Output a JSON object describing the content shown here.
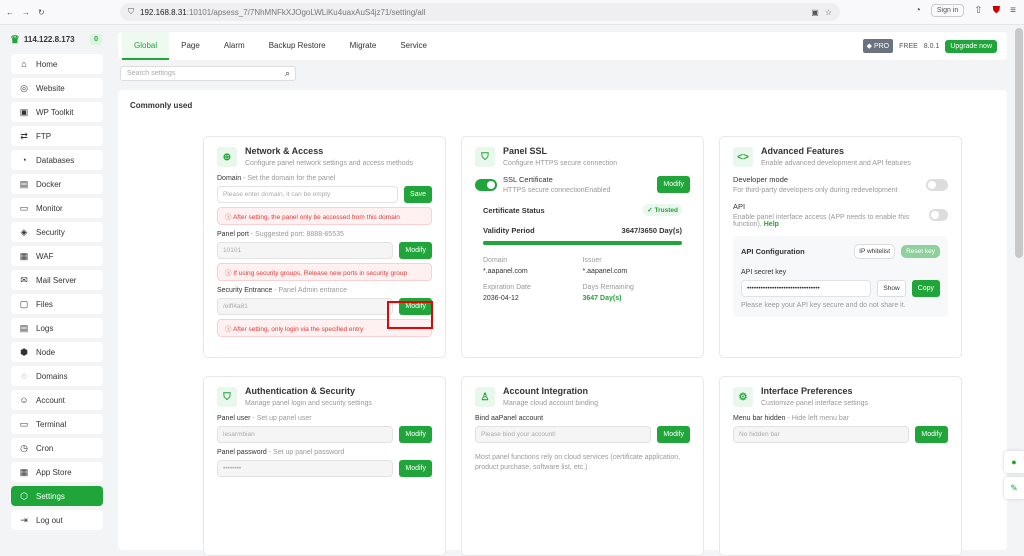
{
  "browser": {
    "url_host": "192.168.8.31",
    "url_path": ":10101/apsess_7/7NhMNFkXJOgoLWLiKu4uaxAuS4jz71/setting/all",
    "sign_in": "Sign in"
  },
  "sidebar": {
    "server": "114.122.8.173",
    "badge": "0",
    "items": [
      {
        "label": "Home",
        "icon": "⌂"
      },
      {
        "label": "Website",
        "icon": "◎"
      },
      {
        "label": "WP Toolkit",
        "icon": "▣"
      },
      {
        "label": "FTP",
        "icon": "⇄"
      },
      {
        "label": "Databases",
        "icon": "◔"
      },
      {
        "label": "Docker",
        "icon": "▤"
      },
      {
        "label": "Monitor",
        "icon": "▭"
      },
      {
        "label": "Security",
        "icon": "◈"
      },
      {
        "label": "WAF",
        "icon": "▦"
      },
      {
        "label": "Mail Server",
        "icon": "✉"
      },
      {
        "label": "Files",
        "icon": "▢"
      },
      {
        "label": "Logs",
        "icon": "▤"
      },
      {
        "label": "Node",
        "icon": "⬢"
      },
      {
        "label": "Domains",
        "icon": "◌"
      },
      {
        "label": "Account",
        "icon": "☺"
      },
      {
        "label": "Terminal",
        "icon": "▭"
      },
      {
        "label": "Cron",
        "icon": "◷"
      },
      {
        "label": "App Store",
        "icon": "▦"
      },
      {
        "label": "Settings",
        "icon": "⬡"
      },
      {
        "label": "Log out",
        "icon": "⇥"
      }
    ],
    "active": "Settings"
  },
  "tabs": [
    "Global",
    "Page",
    "Alarm",
    "Backup Restore",
    "Migrate",
    "Service"
  ],
  "header": {
    "pro": "PRO",
    "free": "FREE",
    "version": "8.0.1",
    "upgrade": "Upgrade now"
  },
  "search": {
    "placeholder": "Search settings"
  },
  "main": {
    "heading": "Commonly used"
  },
  "network": {
    "title": "Network & Access",
    "subtitle": "Configure panel network settings and access methods",
    "domain_label": "Domain",
    "domain_hint": " - Set the domain for the panel",
    "domain_placeholder": "Please enter domain, it can be empty",
    "save": "Save",
    "domain_warn": "After setting, the panel only be accessed from this domain",
    "port_label": "Panel port",
    "port_hint": " - Suggested port: 8888-65535",
    "port_value": "10101",
    "modify": "Modify",
    "port_warn": "If using security groups, Release new ports in security group",
    "entrance_label": "Security Entrance",
    "entrance_hint": " - Panel Admin entrance",
    "entrance_value": "/elff4a81",
    "entrance_warn": "After setting, only login via the specified entry"
  },
  "ssl": {
    "title": "Panel SSL",
    "subtitle": "Configure HTTPS secure connection",
    "cert_label": "SSL Certificate",
    "cert_status_text": "HTTPS secure connectionEnabled",
    "enabled": true,
    "modify": "Modify",
    "status_label": "Certificate Status",
    "trusted": "Trusted",
    "validity_label": "Validity Period",
    "validity_value": "3647/3650 Day(s)",
    "validity_progress": 0.9992,
    "domain_label": "Domain",
    "domain": "*.aapanel.com",
    "issuer_label": "Issuer",
    "issuer": "*.aapanel.com",
    "exp_label": "Expiration Date",
    "exp": "2036-04-12",
    "remain_label": "Days Remaining",
    "remain": "3647 Day(s)"
  },
  "advanced": {
    "title": "Advanced Features",
    "subtitle": "Enable advanced development and API features",
    "dev_label": "Developer mode",
    "dev_desc": "For third-party developers only during redevelopment",
    "dev_on": false,
    "api_label": "API",
    "api_desc": "Enable panel interface access (APP needs to enable this function), ",
    "help": "Help",
    "api_on": false,
    "config_title": "API Configuration",
    "ip_whitelist": "IP whitelist",
    "reset_key": "Reset key",
    "key_label": "API secret key",
    "key_value": "••••••••••••••••••••••••••••••••",
    "show": "Show",
    "copy": "Copy",
    "key_note": "Please keep your API key secure and do not share it."
  },
  "auth": {
    "title": "Authentication & Security",
    "subtitle": "Manage panel login and security settings",
    "user_label": "Panel user",
    "user_hint": " - Set up panel user",
    "user_value": "lesarmbian",
    "pw_label": "Panel password",
    "pw_hint": " - Set up panel password",
    "pw_value": "••••••••",
    "modify": "Modify"
  },
  "account": {
    "title": "Account Integration",
    "subtitle": "Manage cloud account binding",
    "bind_label": "Bind aaPanel account",
    "bind_placeholder": "Please bind your account!",
    "modify": "Modify",
    "note": "Most panel functions rely on cloud services (certificate application, product purchase, software list, etc.)"
  },
  "prefs": {
    "title": "Interface Preferences",
    "subtitle": "Customize panel interface settings",
    "menu_label": "Menu bar hidden",
    "menu_hint": " - Hide left menu bar",
    "menu_value": "No hidden bar",
    "modify": "Modify"
  }
}
